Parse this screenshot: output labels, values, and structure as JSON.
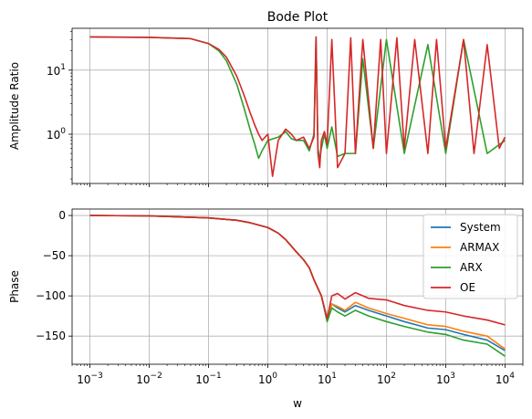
{
  "chart_data": [
    {
      "type": "line",
      "title": "Bode Plot",
      "xlabel": "",
      "ylabel": "Amplitude Ratio",
      "xscale": "log",
      "yscale": "log",
      "xlim": [
        0.0005,
        20000
      ],
      "ylim": [
        0.17,
        45
      ],
      "grid": true,
      "yticks": [
        {
          "value": 1,
          "base": "10",
          "exp": "0"
        },
        {
          "value": 10,
          "base": "10",
          "exp": "1"
        }
      ],
      "series": [
        {
          "name": "ARX",
          "color": "#2ca02c",
          "x": [
            0.001,
            0.01,
            0.05,
            0.1,
            0.15,
            0.2,
            0.3,
            0.4,
            0.5,
            0.6,
            0.7,
            0.8,
            1.0,
            1.5,
            2,
            2.5,
            3,
            4,
            5,
            6,
            6.5,
            7,
            7.5,
            8,
            9,
            10,
            12,
            15,
            20,
            30,
            40,
            60,
            100,
            200,
            500,
            1000,
            2000,
            5000,
            10000
          ],
          "y": [
            33,
            32.5,
            31,
            26,
            20,
            14,
            6,
            2.5,
            1.2,
            0.7,
            0.42,
            0.55,
            0.8,
            0.9,
            1.1,
            0.85,
            0.8,
            0.8,
            0.55,
            1.0,
            32,
            0.6,
            0.4,
            0.6,
            1.0,
            0.6,
            1.3,
            0.45,
            0.5,
            0.5,
            15,
            0.6,
            30,
            0.5,
            25,
            0.5,
            30,
            0.5,
            0.8
          ]
        },
        {
          "name": "OE",
          "color": "#d62728",
          "x": [
            0.001,
            0.01,
            0.05,
            0.1,
            0.15,
            0.2,
            0.3,
            0.4,
            0.5,
            0.6,
            0.7,
            0.8,
            1.0,
            1.2,
            1.5,
            2,
            2.5,
            3,
            4,
            5,
            6,
            6.5,
            7,
            7.5,
            8,
            9,
            10,
            12,
            15,
            20,
            25,
            30,
            40,
            60,
            80,
            100,
            150,
            200,
            300,
            500,
            700,
            1000,
            2000,
            3000,
            5000,
            8000,
            10000
          ],
          "y": [
            33,
            32.5,
            31,
            26,
            21,
            16,
            8,
            4,
            2.2,
            1.4,
            1.0,
            0.8,
            1.0,
            0.22,
            0.8,
            1.2,
            1.0,
            0.8,
            0.9,
            0.6,
            0.9,
            33,
            0.5,
            0.3,
            0.8,
            1.1,
            0.7,
            30,
            0.3,
            0.5,
            32,
            0.5,
            30,
            0.6,
            30,
            0.5,
            32,
            0.6,
            30,
            0.5,
            30,
            0.6,
            30,
            0.5,
            25,
            0.6,
            0.9
          ]
        }
      ]
    },
    {
      "type": "line",
      "title": "",
      "xlabel": "w",
      "ylabel": "Phase",
      "xscale": "log",
      "xlim": [
        0.0005,
        20000
      ],
      "ylim": [
        -185,
        8
      ],
      "grid": true,
      "legend": "top-right",
      "xticks": [
        {
          "value": 0.001,
          "base": "10",
          "exp": "−3"
        },
        {
          "value": 0.01,
          "base": "10",
          "exp": "−2"
        },
        {
          "value": 0.1,
          "base": "10",
          "exp": "−1"
        },
        {
          "value": 1,
          "base": "10",
          "exp": "0"
        },
        {
          "value": 10,
          "base": "10",
          "exp": "1"
        },
        {
          "value": 100,
          "base": "10",
          "exp": "2"
        },
        {
          "value": 1000,
          "base": "10",
          "exp": "3"
        },
        {
          "value": 10000,
          "base": "10",
          "exp": "4"
        }
      ],
      "yticks": [
        "0",
        "−50",
        "−100",
        "−150"
      ],
      "series": [
        {
          "name": "System",
          "color": "#1f77b4",
          "x": [
            0.001,
            0.01,
            0.1,
            0.3,
            0.5,
            1,
            1.5,
            2,
            3,
            4,
            5,
            6,
            8,
            10,
            12,
            15,
            20,
            30,
            50,
            100,
            200,
            500,
            1000,
            2000,
            5000,
            10000
          ],
          "y": [
            0,
            -0.5,
            -3,
            -6,
            -9,
            -15,
            -22,
            -30,
            -45,
            -55,
            -65,
            -80,
            -100,
            -130,
            -110,
            -115,
            -120,
            -112,
            -118,
            -125,
            -132,
            -140,
            -142,
            -148,
            -155,
            -168
          ]
        },
        {
          "name": "ARMAX",
          "color": "#ff7f0e",
          "x": [
            0.001,
            0.01,
            0.1,
            0.3,
            0.5,
            1,
            1.5,
            2,
            3,
            4,
            5,
            6,
            8,
            10,
            12,
            15,
            20,
            30,
            50,
            100,
            200,
            500,
            1000,
            2000,
            5000,
            10000
          ],
          "y": [
            0,
            -0.5,
            -3,
            -6,
            -9,
            -15,
            -22,
            -30,
            -45,
            -55,
            -65,
            -80,
            -100,
            -130,
            -110,
            -113,
            -118,
            -108,
            -115,
            -122,
            -128,
            -136,
            -138,
            -144,
            -150,
            -166
          ]
        },
        {
          "name": "ARX",
          "color": "#2ca02c",
          "x": [
            0.001,
            0.01,
            0.1,
            0.3,
            0.5,
            1,
            1.5,
            2,
            3,
            4,
            5,
            6,
            8,
            10,
            12,
            15,
            20,
            30,
            50,
            100,
            200,
            500,
            1000,
            2000,
            5000,
            10000
          ],
          "y": [
            0,
            -0.5,
            -3,
            -6,
            -9,
            -15,
            -22,
            -30,
            -45,
            -55,
            -65,
            -80,
            -100,
            -132,
            -115,
            -120,
            -125,
            -118,
            -125,
            -132,
            -138,
            -145,
            -148,
            -155,
            -160,
            -175
          ]
        },
        {
          "name": "OE",
          "color": "#d62728",
          "x": [
            0.001,
            0.01,
            0.1,
            0.3,
            0.5,
            1,
            1.5,
            2,
            3,
            4,
            5,
            6,
            8,
            10,
            12,
            15,
            20,
            30,
            50,
            100,
            200,
            500,
            1000,
            2000,
            5000,
            10000
          ],
          "y": [
            0,
            -0.5,
            -3,
            -6,
            -9,
            -15,
            -22,
            -30,
            -45,
            -55,
            -65,
            -80,
            -100,
            -128,
            -100,
            -97,
            -104,
            -96,
            -103,
            -105,
            -112,
            -118,
            -120,
            -125,
            -130,
            -136
          ]
        }
      ]
    }
  ]
}
